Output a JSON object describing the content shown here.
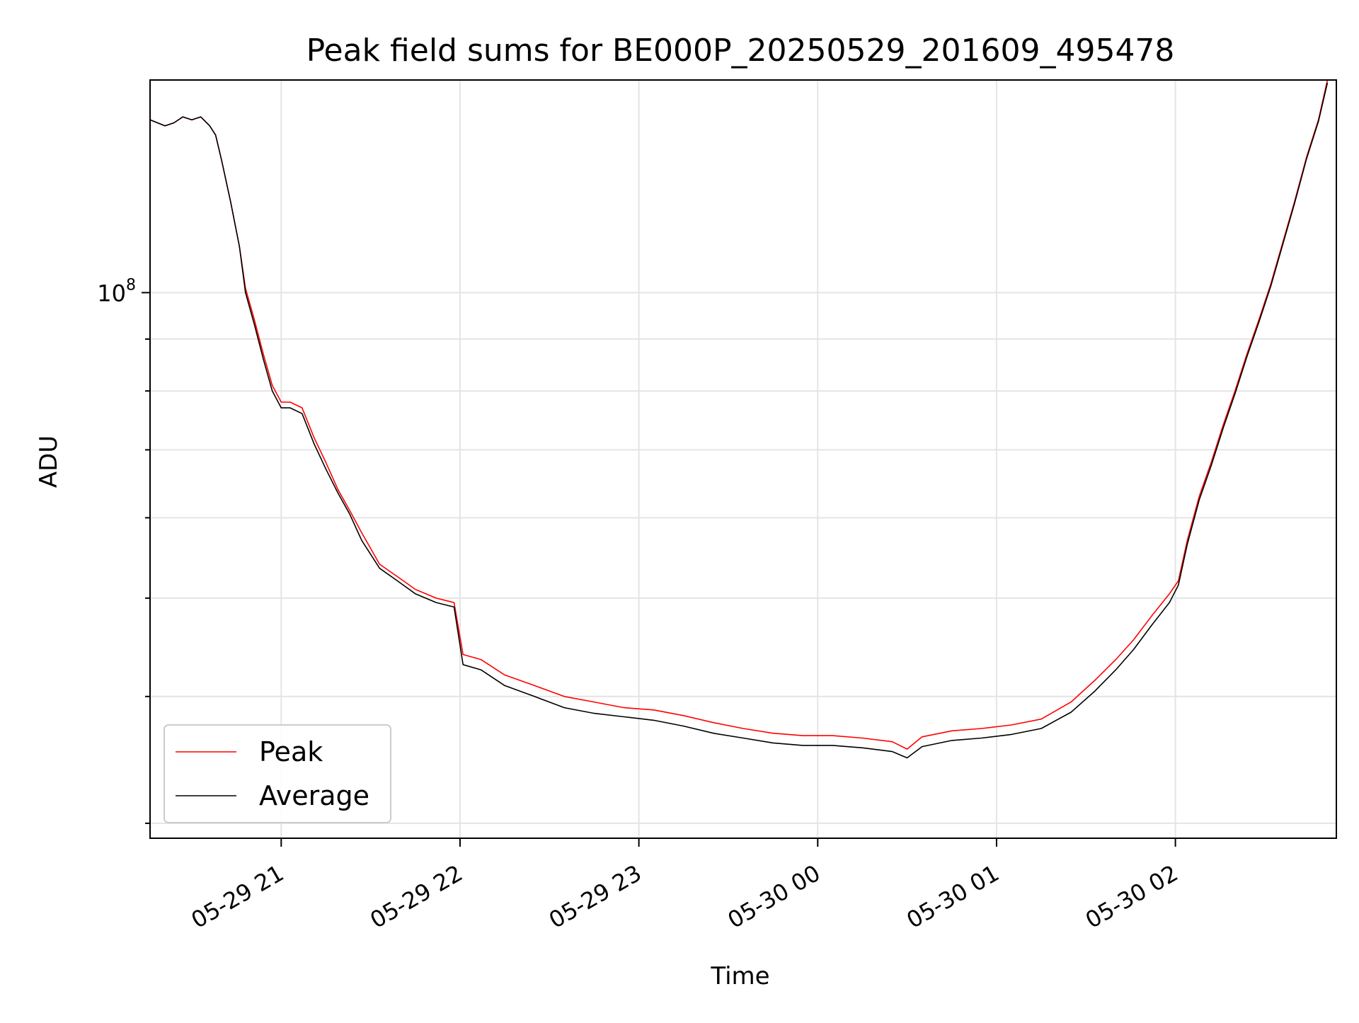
{
  "chart_data": {
    "type": "line",
    "title": "Peak field sums for BE000P_20250529_201609_495478",
    "xlabel": "Time",
    "ylabel": "ADU",
    "y_scale": "log",
    "grid": true,
    "legend_position": "lower-left",
    "xlim": [
      "2025-05-29 20:16",
      "2025-05-30 02:54"
    ],
    "ylim": [
      29000000,
      162000000
    ],
    "x_ticks": [
      {
        "t": "2025-05-29 21:00",
        "label": "05-29 21"
      },
      {
        "t": "2025-05-29 22:00",
        "label": "05-29 22"
      },
      {
        "t": "2025-05-29 23:00",
        "label": "05-29 23"
      },
      {
        "t": "2025-05-30 00:00",
        "label": "05-30 00"
      },
      {
        "t": "2025-05-30 01:00",
        "label": "05-30 01"
      },
      {
        "t": "2025-05-30 02:00",
        "label": "05-30 02"
      }
    ],
    "y_ticks": [
      {
        "value": 100000000,
        "label_base": "10",
        "label_exp": "8"
      }
    ],
    "colors": {
      "Peak": "#ff0000",
      "Average": "#000000"
    },
    "series": [
      {
        "name": "Peak",
        "x": [
          "2025-05-29 20:16",
          "2025-05-29 20:21",
          "2025-05-29 20:24",
          "2025-05-29 20:27",
          "2025-05-29 20:30",
          "2025-05-29 20:33",
          "2025-05-29 20:36",
          "2025-05-29 20:38",
          "2025-05-29 20:40",
          "2025-05-29 20:43",
          "2025-05-29 20:46",
          "2025-05-29 20:48",
          "2025-05-29 20:51",
          "2025-05-29 20:54",
          "2025-05-29 20:57",
          "2025-05-29 21:00",
          "2025-05-29 21:03",
          "2025-05-29 21:07",
          "2025-05-29 21:11",
          "2025-05-29 21:15",
          "2025-05-29 21:19",
          "2025-05-29 21:23",
          "2025-05-29 21:27",
          "2025-05-29 21:33",
          "2025-05-29 21:39",
          "2025-05-29 21:45",
          "2025-05-29 21:52",
          "2025-05-29 21:58",
          "2025-05-29 22:01",
          "2025-05-29 22:07",
          "2025-05-29 22:15",
          "2025-05-29 22:25",
          "2025-05-29 22:35",
          "2025-05-29 22:45",
          "2025-05-29 22:55",
          "2025-05-29 23:05",
          "2025-05-29 23:15",
          "2025-05-29 23:25",
          "2025-05-29 23:35",
          "2025-05-29 23:45",
          "2025-05-29 23:55",
          "2025-05-30 00:05",
          "2025-05-30 00:15",
          "2025-05-30 00:25",
          "2025-05-30 00:30",
          "2025-05-30 00:35",
          "2025-05-30 00:45",
          "2025-05-30 00:55",
          "2025-05-30 01:05",
          "2025-05-30 01:15",
          "2025-05-30 01:25",
          "2025-05-30 01:33",
          "2025-05-30 01:40",
          "2025-05-30 01:46",
          "2025-05-30 01:52",
          "2025-05-30 01:58",
          "2025-05-30 02:01",
          "2025-05-30 02:04",
          "2025-05-30 02:08",
          "2025-05-30 02:12",
          "2025-05-30 02:16",
          "2025-05-30 02:20",
          "2025-05-30 02:24",
          "2025-05-30 02:28",
          "2025-05-30 02:32",
          "2025-05-30 02:36",
          "2025-05-30 02:40",
          "2025-05-30 02:44",
          "2025-05-30 02:48",
          "2025-05-30 02:51"
        ],
        "y": [
          148000000,
          146000000,
          147000000,
          149000000,
          148000000,
          149000000,
          146000000,
          143000000,
          135000000,
          123000000,
          111000000,
          101000000,
          94000000,
          87000000,
          81000000,
          78000000,
          78000000,
          77000000,
          72000000,
          68000000,
          64000000,
          61000000,
          58000000,
          54000000,
          52500000,
          51000000,
          50000000,
          49500000,
          44000000,
          43500000,
          42000000,
          41000000,
          40000000,
          39500000,
          39000000,
          38800000,
          38300000,
          37700000,
          37200000,
          36800000,
          36600000,
          36600000,
          36400000,
          36100000,
          35500000,
          36500000,
          37000000,
          37200000,
          37500000,
          38000000,
          39500000,
          41500000,
          43500000,
          45500000,
          48000000,
          50500000,
          52000000,
          57000000,
          63000000,
          68000000,
          74000000,
          80000000,
          87000000,
          94000000,
          102000000,
          112000000,
          123000000,
          136000000,
          148000000,
          162000000
        ]
      },
      {
        "name": "Average",
        "x": [
          "2025-05-29 20:16",
          "2025-05-29 20:21",
          "2025-05-29 20:24",
          "2025-05-29 20:27",
          "2025-05-29 20:30",
          "2025-05-29 20:33",
          "2025-05-29 20:36",
          "2025-05-29 20:38",
          "2025-05-29 20:40",
          "2025-05-29 20:43",
          "2025-05-29 20:46",
          "2025-05-29 20:48",
          "2025-05-29 20:51",
          "2025-05-29 20:54",
          "2025-05-29 20:57",
          "2025-05-29 21:00",
          "2025-05-29 21:03",
          "2025-05-29 21:07",
          "2025-05-29 21:11",
          "2025-05-29 21:15",
          "2025-05-29 21:19",
          "2025-05-29 21:23",
          "2025-05-29 21:27",
          "2025-05-29 21:33",
          "2025-05-29 21:39",
          "2025-05-29 21:45",
          "2025-05-29 21:52",
          "2025-05-29 21:58",
          "2025-05-29 22:01",
          "2025-05-29 22:07",
          "2025-05-29 22:15",
          "2025-05-29 22:25",
          "2025-05-29 22:35",
          "2025-05-29 22:45",
          "2025-05-29 22:55",
          "2025-05-29 23:05",
          "2025-05-29 23:15",
          "2025-05-29 23:25",
          "2025-05-29 23:35",
          "2025-05-29 23:45",
          "2025-05-29 23:55",
          "2025-05-30 00:05",
          "2025-05-30 00:15",
          "2025-05-30 00:25",
          "2025-05-30 00:30",
          "2025-05-30 00:35",
          "2025-05-30 00:45",
          "2025-05-30 00:55",
          "2025-05-30 01:05",
          "2025-05-30 01:15",
          "2025-05-30 01:25",
          "2025-05-30 01:33",
          "2025-05-30 01:40",
          "2025-05-30 01:46",
          "2025-05-30 01:52",
          "2025-05-30 01:58",
          "2025-05-30 02:01",
          "2025-05-30 02:04",
          "2025-05-30 02:08",
          "2025-05-30 02:12",
          "2025-05-30 02:16",
          "2025-05-30 02:20",
          "2025-05-30 02:24",
          "2025-05-30 02:28",
          "2025-05-30 02:32",
          "2025-05-30 02:36",
          "2025-05-30 02:40",
          "2025-05-30 02:44",
          "2025-05-30 02:48",
          "2025-05-30 02:51"
        ],
        "y": [
          148000000,
          146000000,
          147000000,
          149000000,
          148000000,
          149000000,
          146000000,
          143000000,
          135000000,
          123000000,
          111000000,
          100000000,
          93000000,
          86000000,
          80000000,
          77000000,
          77000000,
          76000000,
          71000000,
          67000000,
          63500000,
          60500000,
          57000000,
          53500000,
          52000000,
          50500000,
          49500000,
          49000000,
          43000000,
          42500000,
          41000000,
          40000000,
          39000000,
          38500000,
          38200000,
          37900000,
          37400000,
          36800000,
          36400000,
          36000000,
          35800000,
          35800000,
          35600000,
          35300000,
          34800000,
          35700000,
          36200000,
          36400000,
          36700000,
          37200000,
          38600000,
          40500000,
          42500000,
          44500000,
          47000000,
          49500000,
          51500000,
          56500000,
          62500000,
          67500000,
          73500000,
          79500000,
          86500000,
          93500000,
          101500000,
          111500000,
          122500000,
          135500000,
          147500000,
          161000000
        ]
      }
    ],
    "legend": [
      {
        "name": "Peak",
        "color": "#ff0000"
      },
      {
        "name": "Average",
        "color": "#000000"
      }
    ]
  }
}
